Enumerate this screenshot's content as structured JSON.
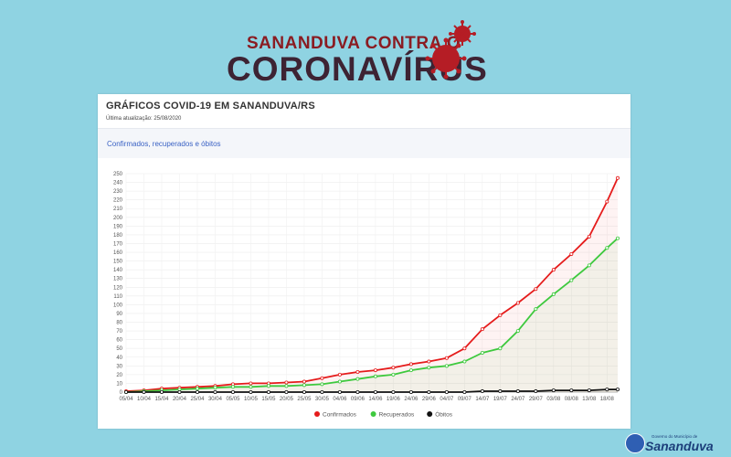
{
  "banner": {
    "line1": "SANANDUVA CONTRA O",
    "line2": "CORONAVÍRUS"
  },
  "card": {
    "title": "GRÁFICOS COVID-19 EM SANANDUVA/RS",
    "last_update": "Última atualização: 25/08/2020",
    "section_title": "Confirmados, recuperados e óbitos"
  },
  "footer": {
    "gov_label": "Governo do Município de",
    "city_label": "Sananduva"
  },
  "colors": {
    "confirmados": "#e51b1b",
    "recuperados": "#3ec93e",
    "obitos": "#111111",
    "section_title": "#3a62c4"
  },
  "chart_data": {
    "type": "line",
    "title": "",
    "xlabel": "",
    "ylabel": "",
    "ylim": [
      0,
      250
    ],
    "yticks": [
      0,
      10,
      20,
      30,
      40,
      50,
      60,
      70,
      80,
      90,
      100,
      110,
      120,
      130,
      140,
      150,
      160,
      170,
      180,
      190,
      200,
      210,
      220,
      230,
      240,
      250
    ],
    "xticks": [
      "05/04",
      "10/04",
      "15/04",
      "20/04",
      "25/04",
      "30/04",
      "05/05",
      "10/05",
      "15/05",
      "20/05",
      "25/05",
      "30/05",
      "04/06",
      "09/06",
      "14/06",
      "19/06",
      "24/06",
      "29/06",
      "04/07",
      "09/07",
      "14/07",
      "19/07",
      "24/07",
      "29/07",
      "03/08",
      "08/08",
      "13/08",
      "18/08"
    ],
    "grid": true,
    "legend_position": "bottom",
    "x": [
      "05/04",
      "10/04",
      "15/04",
      "20/04",
      "25/04",
      "30/04",
      "05/05",
      "10/05",
      "15/05",
      "20/05",
      "25/05",
      "30/05",
      "04/06",
      "09/06",
      "14/06",
      "19/06",
      "24/06",
      "29/06",
      "04/07",
      "09/07",
      "14/07",
      "19/07",
      "24/07",
      "29/07",
      "03/08",
      "08/08",
      "13/08",
      "18/08",
      "21/08"
    ],
    "series": [
      {
        "name": "Confirmados",
        "values": [
          1,
          2,
          4,
          5,
          6,
          7,
          9,
          10,
          10,
          11,
          12,
          16,
          20,
          23,
          25,
          28,
          32,
          35,
          39,
          50,
          72,
          88,
          102,
          118,
          140,
          158,
          178,
          218,
          245
        ]
      },
      {
        "name": "Recuperados",
        "values": [
          0,
          1,
          2,
          3,
          4,
          5,
          6,
          6,
          7,
          7,
          8,
          9,
          12,
          15,
          18,
          20,
          25,
          28,
          30,
          35,
          45,
          50,
          70,
          95,
          112,
          128,
          145,
          165,
          176
        ]
      },
      {
        "name": "Óbitos",
        "values": [
          0,
          0,
          0,
          0,
          0,
          0,
          0,
          0,
          0,
          0,
          0,
          0,
          0,
          0,
          0,
          0,
          0,
          0,
          0,
          0,
          1,
          1,
          1,
          1,
          2,
          2,
          2,
          3,
          3
        ]
      }
    ]
  }
}
